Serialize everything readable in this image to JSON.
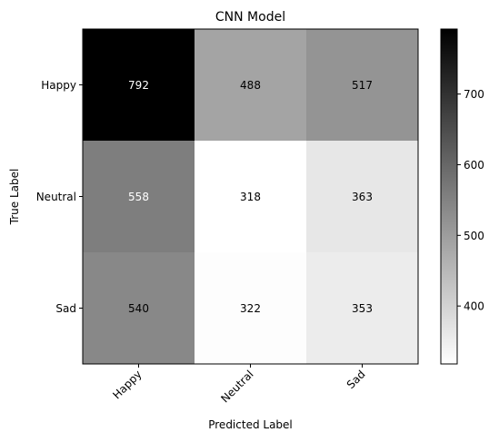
{
  "chart_data": {
    "type": "heatmap",
    "title": "CNN Model",
    "xlabel": "Predicted Label",
    "ylabel": "True Label",
    "x_categories": [
      "Happy",
      "Neutral",
      "Sad"
    ],
    "y_categories": [
      "Happy",
      "Neutral",
      "Sad"
    ],
    "values": [
      [
        792,
        488,
        517
      ],
      [
        558,
        318,
        363
      ],
      [
        540,
        322,
        353
      ]
    ],
    "colormap": "gray_r",
    "color_range": [
      318,
      792
    ],
    "colorbar": {
      "ticks": [
        400,
        500,
        600,
        700
      ]
    },
    "dark_text_color": "#000000",
    "light_text_color": "#ffffff",
    "grid": false
  }
}
